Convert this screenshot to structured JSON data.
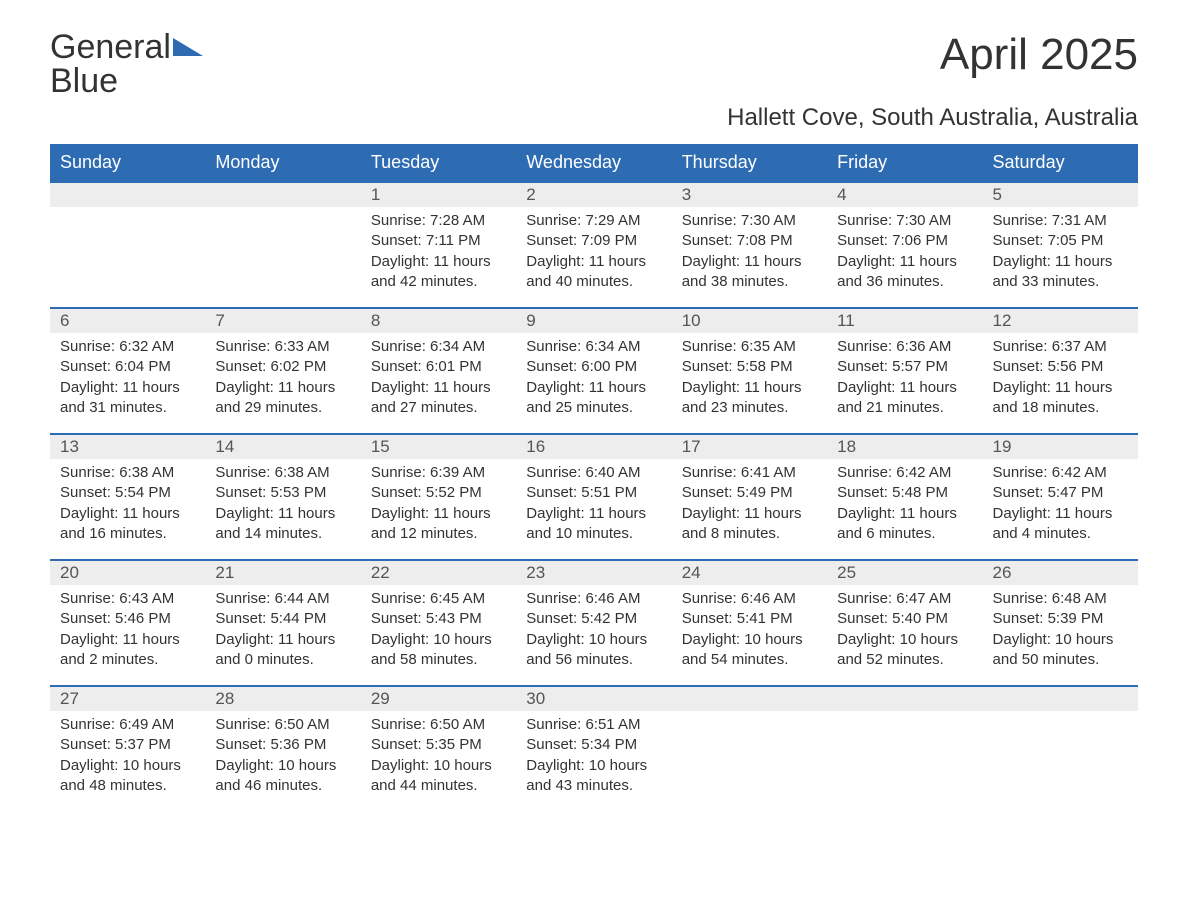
{
  "logo": {
    "word1": "General",
    "word2": "Blue",
    "triangle_color": "#2d6bb3"
  },
  "title": "April 2025",
  "subtitle": "Hallett Cove, South Australia, Australia",
  "colors": {
    "header_bg": "#2d6bb3",
    "header_text": "#ffffff",
    "daynum_bg": "#ededed",
    "text": "#333333",
    "week_border": "#2d6bb3",
    "background": "#ffffff"
  },
  "typography": {
    "title_fontsize": 44,
    "subtitle_fontsize": 24,
    "dow_fontsize": 18,
    "daynum_fontsize": 17,
    "body_fontsize": 15,
    "logo_fontsize": 34
  },
  "days_of_week": [
    "Sunday",
    "Monday",
    "Tuesday",
    "Wednesday",
    "Thursday",
    "Friday",
    "Saturday"
  ],
  "weeks": [
    [
      {
        "n": "",
        "empty": true
      },
      {
        "n": "",
        "empty": true
      },
      {
        "n": "1",
        "sunrise": "7:28 AM",
        "sunset": "7:11 PM",
        "daylight": "11 hours and 42 minutes."
      },
      {
        "n": "2",
        "sunrise": "7:29 AM",
        "sunset": "7:09 PM",
        "daylight": "11 hours and 40 minutes."
      },
      {
        "n": "3",
        "sunrise": "7:30 AM",
        "sunset": "7:08 PM",
        "daylight": "11 hours and 38 minutes."
      },
      {
        "n": "4",
        "sunrise": "7:30 AM",
        "sunset": "7:06 PM",
        "daylight": "11 hours and 36 minutes."
      },
      {
        "n": "5",
        "sunrise": "7:31 AM",
        "sunset": "7:05 PM",
        "daylight": "11 hours and 33 minutes."
      }
    ],
    [
      {
        "n": "6",
        "sunrise": "6:32 AM",
        "sunset": "6:04 PM",
        "daylight": "11 hours and 31 minutes."
      },
      {
        "n": "7",
        "sunrise": "6:33 AM",
        "sunset": "6:02 PM",
        "daylight": "11 hours and 29 minutes."
      },
      {
        "n": "8",
        "sunrise": "6:34 AM",
        "sunset": "6:01 PM",
        "daylight": "11 hours and 27 minutes."
      },
      {
        "n": "9",
        "sunrise": "6:34 AM",
        "sunset": "6:00 PM",
        "daylight": "11 hours and 25 minutes."
      },
      {
        "n": "10",
        "sunrise": "6:35 AM",
        "sunset": "5:58 PM",
        "daylight": "11 hours and 23 minutes."
      },
      {
        "n": "11",
        "sunrise": "6:36 AM",
        "sunset": "5:57 PM",
        "daylight": "11 hours and 21 minutes."
      },
      {
        "n": "12",
        "sunrise": "6:37 AM",
        "sunset": "5:56 PM",
        "daylight": "11 hours and 18 minutes."
      }
    ],
    [
      {
        "n": "13",
        "sunrise": "6:38 AM",
        "sunset": "5:54 PM",
        "daylight": "11 hours and 16 minutes."
      },
      {
        "n": "14",
        "sunrise": "6:38 AM",
        "sunset": "5:53 PM",
        "daylight": "11 hours and 14 minutes."
      },
      {
        "n": "15",
        "sunrise": "6:39 AM",
        "sunset": "5:52 PM",
        "daylight": "11 hours and 12 minutes."
      },
      {
        "n": "16",
        "sunrise": "6:40 AM",
        "sunset": "5:51 PM",
        "daylight": "11 hours and 10 minutes."
      },
      {
        "n": "17",
        "sunrise": "6:41 AM",
        "sunset": "5:49 PM",
        "daylight": "11 hours and 8 minutes."
      },
      {
        "n": "18",
        "sunrise": "6:42 AM",
        "sunset": "5:48 PM",
        "daylight": "11 hours and 6 minutes."
      },
      {
        "n": "19",
        "sunrise": "6:42 AM",
        "sunset": "5:47 PM",
        "daylight": "11 hours and 4 minutes."
      }
    ],
    [
      {
        "n": "20",
        "sunrise": "6:43 AM",
        "sunset": "5:46 PM",
        "daylight": "11 hours and 2 minutes."
      },
      {
        "n": "21",
        "sunrise": "6:44 AM",
        "sunset": "5:44 PM",
        "daylight": "11 hours and 0 minutes."
      },
      {
        "n": "22",
        "sunrise": "6:45 AM",
        "sunset": "5:43 PM",
        "daylight": "10 hours and 58 minutes."
      },
      {
        "n": "23",
        "sunrise": "6:46 AM",
        "sunset": "5:42 PM",
        "daylight": "10 hours and 56 minutes."
      },
      {
        "n": "24",
        "sunrise": "6:46 AM",
        "sunset": "5:41 PM",
        "daylight": "10 hours and 54 minutes."
      },
      {
        "n": "25",
        "sunrise": "6:47 AM",
        "sunset": "5:40 PM",
        "daylight": "10 hours and 52 minutes."
      },
      {
        "n": "26",
        "sunrise": "6:48 AM",
        "sunset": "5:39 PM",
        "daylight": "10 hours and 50 minutes."
      }
    ],
    [
      {
        "n": "27",
        "sunrise": "6:49 AM",
        "sunset": "5:37 PM",
        "daylight": "10 hours and 48 minutes."
      },
      {
        "n": "28",
        "sunrise": "6:50 AM",
        "sunset": "5:36 PM",
        "daylight": "10 hours and 46 minutes."
      },
      {
        "n": "29",
        "sunrise": "6:50 AM",
        "sunset": "5:35 PM",
        "daylight": "10 hours and 44 minutes."
      },
      {
        "n": "30",
        "sunrise": "6:51 AM",
        "sunset": "5:34 PM",
        "daylight": "10 hours and 43 minutes."
      },
      {
        "n": "",
        "empty": true
      },
      {
        "n": "",
        "empty": true
      },
      {
        "n": "",
        "empty": true
      }
    ]
  ],
  "labels": {
    "sunrise": "Sunrise: ",
    "sunset": "Sunset: ",
    "daylight": "Daylight: "
  }
}
